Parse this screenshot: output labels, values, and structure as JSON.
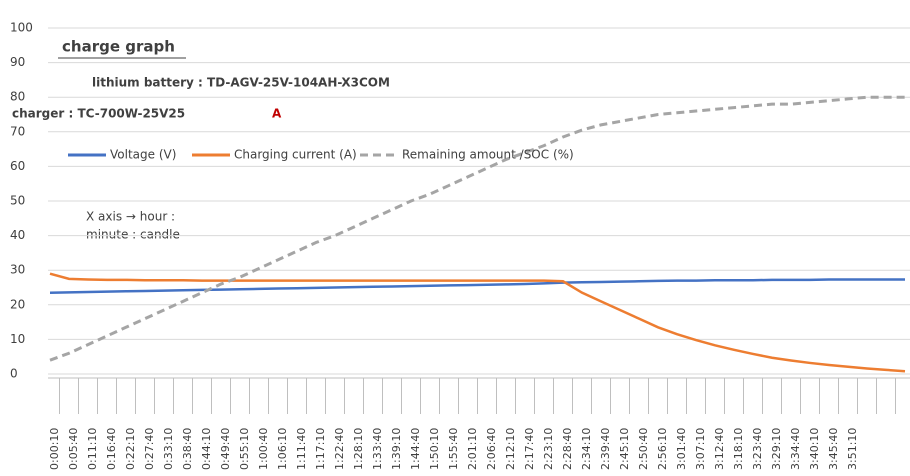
{
  "chart_data": {
    "type": "line",
    "title": "charge graph",
    "battery": "lithium battery : TD-AGV-25V-104AH-X3COM",
    "charger": "charger : TC-700W-25V25",
    "charger_suffix": "A",
    "annotation": [
      "X axis → hour :",
      "minute : candle"
    ],
    "categories": [
      "0:00:10",
      "0:05:40",
      "0:11:10",
      "0:16:40",
      "0:22:10",
      "0:27:40",
      "0:33:10",
      "0:38:40",
      "0:44:10",
      "0:49:40",
      "0:55:10",
      "1:00:40",
      "1:06:10",
      "1:11:40",
      "1:17:10",
      "1:22:40",
      "1:28:10",
      "1:33:40",
      "1:39:10",
      "1:44:40",
      "1:50:10",
      "1:55:40",
      "2:01:10",
      "2:06:40",
      "2:12:10",
      "2:17:40",
      "2:23:10",
      "2:28:40",
      "2:34:10",
      "2:39:40",
      "2:45:10",
      "2:50:40",
      "2:56:10",
      "3:01:40",
      "3:07:10",
      "3:12:40",
      "3:18:10",
      "3:23:40",
      "3:29:10",
      "3:34:40",
      "3:40:10",
      "3:45:40",
      "3:51:10",
      null,
      null,
      null
    ],
    "series": [
      {
        "name": "Voltage (V)",
        "color": "#4472c4",
        "dashed": false,
        "values": [
          23.5,
          23.6,
          23.7,
          23.8,
          23.9,
          24.0,
          24.1,
          24.2,
          24.3,
          24.4,
          24.5,
          24.6,
          24.7,
          24.8,
          24.9,
          25.0,
          25.1,
          25.2,
          25.3,
          25.4,
          25.5,
          25.6,
          25.7,
          25.8,
          25.9,
          26.0,
          26.2,
          26.4,
          26.5,
          26.6,
          26.7,
          26.8,
          26.9,
          27.0,
          27.0,
          27.1,
          27.1,
          27.1,
          27.2,
          27.2,
          27.2,
          27.3,
          27.3,
          27.3,
          27.3,
          27.3
        ]
      },
      {
        "name": "Charging current (A)",
        "color": "#ed7d31",
        "dashed": false,
        "values": [
          29,
          27.5,
          27.3,
          27.2,
          27.2,
          27.1,
          27.1,
          27.1,
          27,
          27,
          27,
          27,
          27,
          27,
          27,
          27,
          27,
          27,
          27,
          27,
          27,
          27,
          27,
          27,
          27,
          27,
          27,
          26.8,
          23.5,
          21,
          18.5,
          16,
          13.5,
          11.5,
          9.8,
          8.3,
          7,
          5.8,
          4.7,
          3.9,
          3.2,
          2.6,
          2.1,
          1.6,
          1.2,
          0.8
        ]
      },
      {
        "name": "Remaining amount /SOC (%)",
        "color": "#a5a5a5",
        "dashed": true,
        "values": [
          4,
          6,
          8.5,
          11,
          13.5,
          16,
          18.5,
          21,
          23.5,
          26,
          28,
          30.5,
          33,
          35.5,
          38,
          40,
          42.5,
          45,
          47.5,
          50,
          52,
          54.5,
          57,
          59.5,
          62,
          64,
          66,
          68.5,
          70.5,
          72,
          73,
          74,
          75,
          75.5,
          76,
          76.5,
          77,
          77.5,
          78,
          78,
          78.5,
          79,
          79.5,
          80,
          80,
          80
        ]
      }
    ],
    "ylim": [
      0,
      100
    ],
    "yticks": [
      0,
      10,
      20,
      30,
      40,
      50,
      60,
      70,
      80,
      90,
      100
    ],
    "grid": true
  }
}
